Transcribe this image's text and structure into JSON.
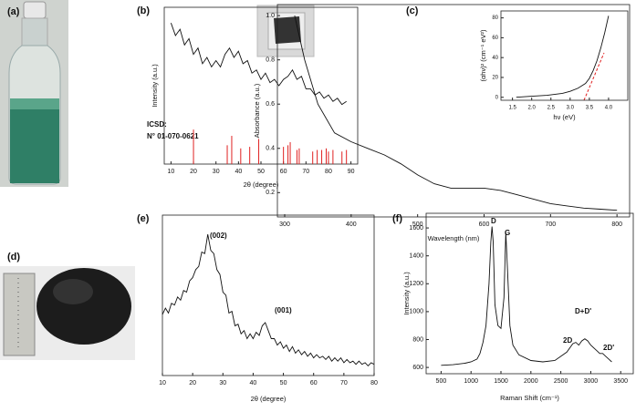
{
  "photos": [
    {
      "label": "(a)"
    },
    {
      "label": "(d)"
    }
  ],
  "chart_data": [
    {
      "type": "line",
      "panel_label": "(b)",
      "xlabel": "2θ (degree)",
      "ylabel": "Intensity (a.u.)",
      "annotations": [
        "ICSD:",
        "N° 01-070-0621"
      ],
      "xlim": [
        7,
        93
      ],
      "xticks": [
        10,
        20,
        30,
        40,
        50,
        60,
        70,
        80,
        90
      ],
      "ylim": [
        0,
        100
      ],
      "series": [
        {
          "type": "line",
          "color": "#111111",
          "x": [
            10,
            12,
            14,
            16,
            18,
            20,
            22,
            24,
            26,
            28,
            30,
            32,
            34,
            36,
            38,
            40,
            42,
            44,
            46,
            48,
            50,
            52,
            54,
            56,
            58,
            60,
            62,
            64,
            66,
            68,
            70,
            72,
            74,
            76,
            78,
            80,
            82,
            84,
            86,
            88
          ],
          "values": [
            90,
            82,
            86,
            76,
            80,
            70,
            74,
            64,
            68,
            62,
            66,
            62,
            70,
            74,
            68,
            72,
            64,
            66,
            58,
            60,
            54,
            58,
            52,
            54,
            50,
            54,
            56,
            60,
            54,
            56,
            48,
            48,
            44,
            46,
            42,
            44,
            40,
            42,
            38,
            40
          ]
        },
        {
          "type": "stem",
          "color": "#e02020",
          "x": [
            20,
            35,
            37,
            41,
            45,
            49,
            60,
            62,
            63,
            66,
            67,
            73,
            75,
            77,
            79,
            80,
            82,
            86,
            88
          ],
          "values": [
            22,
            12,
            18,
            10,
            11,
            16,
            11,
            12,
            14,
            9,
            10,
            8,
            9,
            9,
            10,
            8,
            9,
            8,
            9
          ]
        }
      ]
    },
    {
      "type": "line",
      "panel_label": "(c)",
      "xlabel": "Wavelength (nm)",
      "ylabel": "Absorbance (a.u.)",
      "xlim": [
        289,
        819
      ],
      "xticks": [
        300,
        400,
        500,
        600,
        700,
        800
      ],
      "ylim": [
        0.09,
        1.05
      ],
      "yticks": [
        0.2,
        0.4,
        0.6,
        0.8,
        {
          "value": 1,
          "label": "1.0"
        }
      ],
      "series": [
        {
          "type": "line",
          "color": "#111111",
          "x": [
            315,
            330,
            350,
            375,
            400,
            425,
            450,
            475,
            500,
            525,
            550,
            575,
            600,
            625,
            650,
            675,
            700,
            725,
            750,
            775,
            800
          ],
          "values": [
            1.0,
            0.8,
            0.6,
            0.47,
            0.43,
            0.4,
            0.37,
            0.33,
            0.28,
            0.24,
            0.22,
            0.22,
            0.22,
            0.21,
            0.19,
            0.17,
            0.15,
            0.14,
            0.13,
            0.125,
            0.12
          ]
        }
      ]
    },
    {
      "type": "line",
      "xlabel": "hν (eV)",
      "ylabel": "(αhν)² (cm⁻¹ eV²)",
      "xlim": [
        1.2,
        4.5
      ],
      "xticks": [
        1.5,
        {
          "value": 2,
          "label": "2.0"
        },
        2.5,
        {
          "value": 3,
          "label": "3.0"
        },
        3.5,
        {
          "value": 4,
          "label": "4.0"
        }
      ],
      "ylim": [
        -3,
        87
      ],
      "yticks": [
        0,
        20,
        40,
        60,
        80
      ],
      "series": [
        {
          "type": "line",
          "color": "#111111",
          "x": [
            1.6,
            2.0,
            2.4,
            2.8,
            3.0,
            3.2,
            3.4,
            3.5,
            3.6,
            3.7,
            3.8,
            3.9,
            4.0
          ],
          "values": [
            0,
            1,
            2,
            4,
            6,
            9,
            14,
            19,
            27,
            37,
            50,
            65,
            82
          ]
        }
      ]
    },
    {
      "type": "line",
      "panel_label": "(e)",
      "xlabel": "2θ (degree)",
      "annotations": [
        "(002)",
        "(001)"
      ],
      "xlim": [
        10,
        80
      ],
      "xticks": [
        10,
        20,
        30,
        40,
        50,
        60,
        70,
        80
      ],
      "ylim": [
        0,
        100
      ],
      "series": [
        {
          "type": "line",
          "color": "#111111",
          "x": [
            10,
            11,
            12,
            13,
            14,
            15,
            16,
            17,
            18,
            19,
            20,
            21,
            22,
            23,
            24,
            25,
            26,
            27,
            28,
            29,
            30,
            31,
            32,
            33,
            34,
            35,
            36,
            37,
            38,
            39,
            40,
            41,
            42,
            43,
            44,
            45,
            46,
            47,
            48,
            49,
            50,
            51,
            52,
            53,
            54,
            55,
            56,
            57,
            58,
            59,
            60,
            61,
            62,
            63,
            64,
            65,
            66,
            67,
            68,
            69,
            70,
            71,
            72,
            73,
            74,
            75,
            76,
            77,
            78,
            79,
            80
          ],
          "values": [
            38,
            42,
            39,
            45,
            44,
            49,
            47,
            53,
            52,
            59,
            61,
            66,
            68,
            77,
            76,
            88,
            78,
            76,
            66,
            63,
            52,
            50,
            39,
            40,
            31,
            32,
            26,
            28,
            23,
            26,
            23,
            27,
            25,
            31,
            33,
            28,
            23,
            23,
            19,
            21,
            17,
            19,
            15,
            18,
            14,
            16,
            13,
            15,
            12,
            14,
            11,
            13,
            11,
            12,
            10,
            12,
            9,
            11,
            9,
            11,
            8,
            10,
            8,
            9,
            7,
            9,
            7,
            8,
            6,
            8,
            7
          ]
        }
      ]
    },
    {
      "type": "line",
      "panel_label": "(f)",
      "xlabel": "Raman Shift (cm⁻¹)",
      "ylabel": "Intensity (a.u.)",
      "annotations": [
        "D",
        "G",
        "2D",
        "D+D'",
        "2D'"
      ],
      "xlim": [
        250,
        3710
      ],
      "xticks": [
        500,
        1000,
        1500,
        2000,
        2500,
        3000,
        3500
      ],
      "ylim": [
        555,
        1705
      ],
      "yticks": [
        600,
        800,
        1000,
        1200,
        1400,
        1600
      ],
      "series": [
        {
          "type": "line",
          "color": "#111111",
          "x": [
            500,
            700,
            900,
            1000,
            1100,
            1150,
            1200,
            1250,
            1300,
            1330,
            1350,
            1370,
            1400,
            1450,
            1500,
            1550,
            1580,
            1610,
            1650,
            1700,
            1800,
            2000,
            2200,
            2400,
            2600,
            2700,
            2750,
            2800,
            2850,
            2900,
            2950,
            3000,
            3100,
            3150,
            3200,
            3250,
            3300,
            3350
          ],
          "values": [
            615,
            620,
            630,
            640,
            660,
            700,
            780,
            900,
            1200,
            1500,
            1610,
            1500,
            1050,
            900,
            880,
            1100,
            1570,
            1300,
            900,
            760,
            690,
            650,
            640,
            650,
            710,
            770,
            780,
            760,
            790,
            805,
            790,
            760,
            720,
            700,
            700,
            680,
            660,
            640
          ]
        }
      ]
    }
  ]
}
